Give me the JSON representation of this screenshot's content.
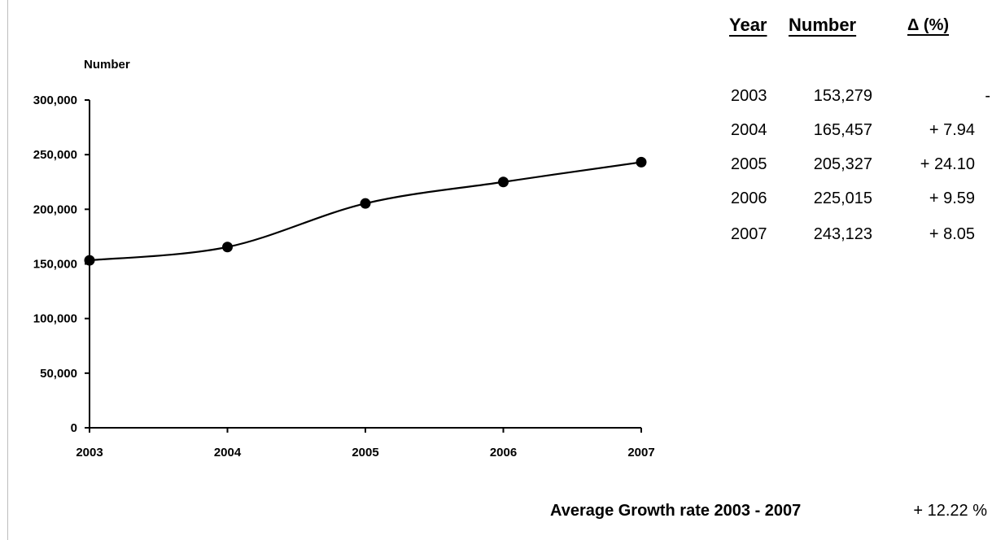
{
  "chart_data": {
    "type": "line",
    "ylabel": "Number",
    "xlabel": "",
    "categories": [
      "2003",
      "2004",
      "2005",
      "2006",
      "2007"
    ],
    "values": [
      153279,
      165457,
      205327,
      225015,
      243123
    ],
    "ylim": [
      0,
      300000
    ],
    "yticks": [
      "0",
      "50,000",
      "100,000",
      "150,000",
      "200,000",
      "250,000",
      "300,000"
    ],
    "ytick_values": [
      0,
      50000,
      100000,
      150000,
      200000,
      250000,
      300000
    ],
    "grid": false,
    "markers": "filled-circle",
    "line_color": "#000000",
    "smooth": true
  },
  "table": {
    "headers": {
      "year": "Year",
      "number": "Number",
      "delta": "Δ (%)"
    },
    "rows": [
      {
        "year": "2003",
        "number": "153,279",
        "delta": "-"
      },
      {
        "year": "2004",
        "number": "165,457",
        "delta": "+ 7.94"
      },
      {
        "year": "2005",
        "number": "205,327",
        "delta": "+ 24.10"
      },
      {
        "year": "2006",
        "number": "225,015",
        "delta": "+ 9.59"
      },
      {
        "year": "2007",
        "number": "243,123",
        "delta": "+ 8.05"
      }
    ]
  },
  "summary": {
    "label": "Average Growth rate 2003 - 2007",
    "value": "+ 12.22 %"
  }
}
